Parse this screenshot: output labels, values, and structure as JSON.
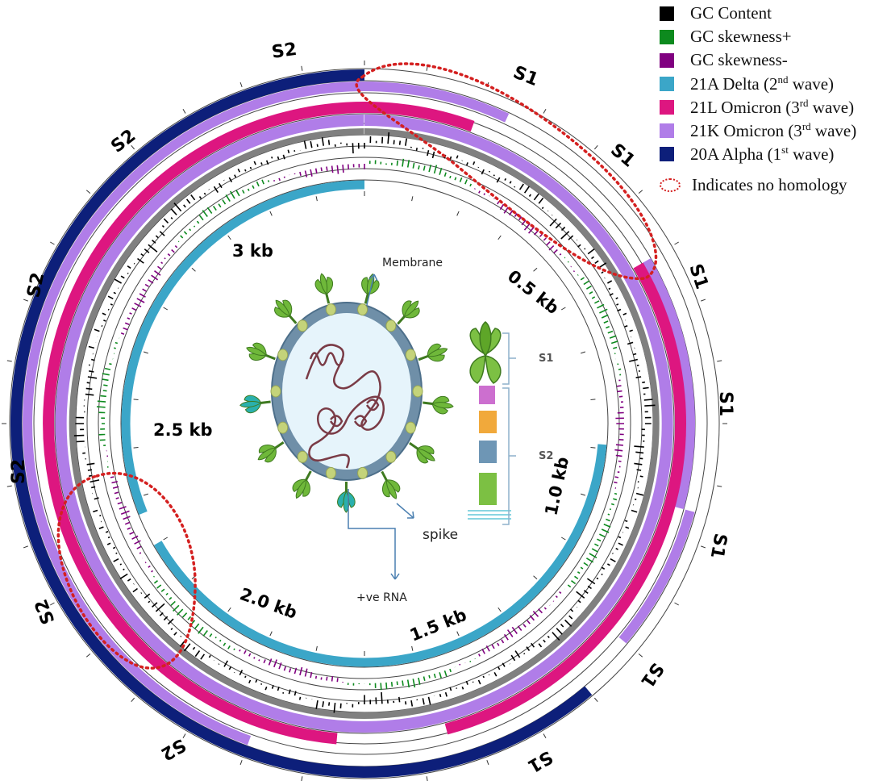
{
  "legend": {
    "items": [
      {
        "label": "GC Content",
        "color": "#000000"
      },
      {
        "label": "GC skewness+",
        "color": "#0d8a1e"
      },
      {
        "label": "GC skewness-",
        "color": "#800080"
      },
      {
        "label": "21A Delta (2",
        "sup": "nd",
        "suffix": " wave)",
        "color": "#3ba6c8"
      },
      {
        "label": "21L Omicron (3",
        "sup": "rd",
        "suffix": " wave)",
        "color": "#dd1680"
      },
      {
        "label": "21K Omicron (3",
        "sup": "rd",
        "suffix": " wave)",
        "color": "#b07de8"
      },
      {
        "label": "20A Alpha (1",
        "sup": "st",
        "suffix": " wave)",
        "color": "#0d1f7a"
      }
    ],
    "no_homology_label": "Indicates no homology",
    "no_homology_color": "#d42020"
  },
  "segment_labels": [
    "S2",
    "S2",
    "S2",
    "S2",
    "S2",
    "S2",
    "S1",
    "S1",
    "S1",
    "S1",
    "S1",
    "S1",
    "S1"
  ],
  "scale_labels": [
    "0.5 kb",
    "1.0 kb",
    "1.5 kb",
    "2.0 kb",
    "2.5 kb",
    "3 kb"
  ],
  "virus": {
    "membrane_label": "Membrane",
    "spike_label": "spike",
    "rna_label": "+ve RNA",
    "s1_label": "S1",
    "s2_label": "S2"
  },
  "colors": {
    "delta": "#3ba6c8",
    "omicron_21L": "#dd1680",
    "omicron_21K": "#b07de8",
    "alpha": "#0d1f7a",
    "gc_content": "#000000",
    "gc_skew_pos": "#0d8a1e",
    "gc_skew_neg": "#800080",
    "ring_line": "#444444",
    "track_grey": "#808080"
  }
}
